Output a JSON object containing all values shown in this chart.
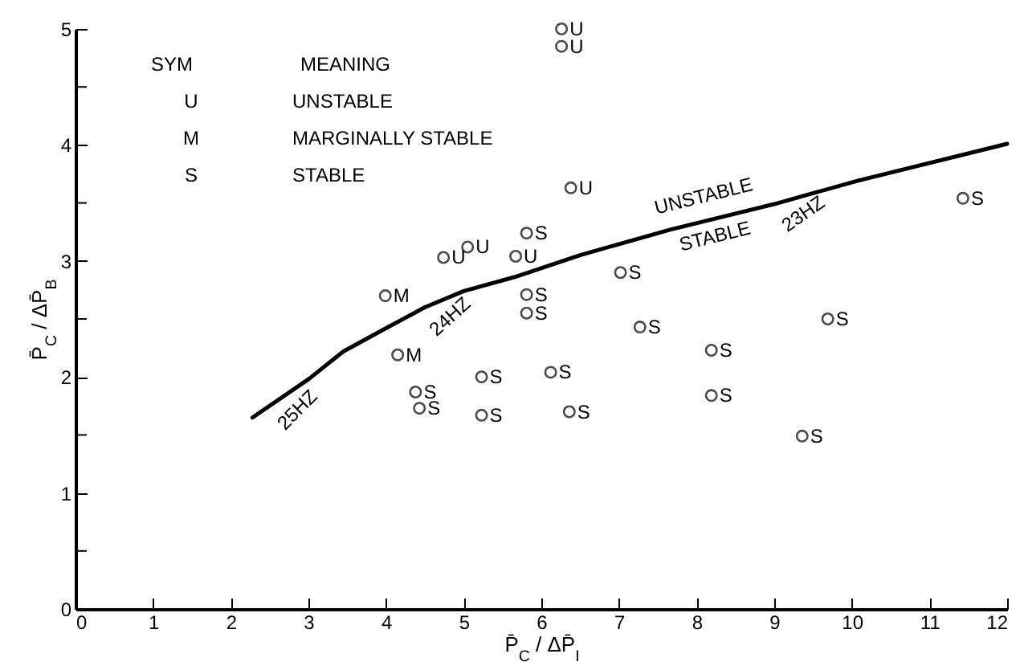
{
  "chart_data": {
    "type": "scatter",
    "xlabel": "P̄$_{C}$ / ΔP̄$_{I}$",
    "ylabel": "P̄$_{C}$ / ΔP̄$_{B}$",
    "xlim": [
      0,
      12
    ],
    "xticks": [
      0,
      1,
      2,
      3,
      4,
      5,
      6,
      7,
      8,
      9,
      10,
      11,
      12
    ],
    "ylim": [
      0,
      5
    ],
    "yticks": [
      0,
      {
        "value": 0.5,
        "label": null
      },
      1,
      {
        "value": 1.5,
        "label": null
      },
      2,
      {
        "value": 2.5,
        "label": null
      },
      3,
      {
        "value": 3.5,
        "label": null
      },
      4,
      {
        "value": 4.5,
        "label": null
      },
      5
    ],
    "grid": false,
    "marker": "circle",
    "legend": "top left",
    "series": [
      {
        "type": "line",
        "marker": "none",
        "color": "#000000",
        "x": [
          2.28,
          3.0,
          3.45,
          4.0,
          4.5,
          5.0,
          5.65,
          6.5,
          7.66,
          9.0,
          10.07,
          12.0
        ],
        "values": [
          1.65,
          1.98,
          2.22,
          2.42,
          2.6,
          2.74,
          2.86,
          3.05,
          3.27,
          3.49,
          3.69,
          4.01
        ]
      },
      {
        "name": "U",
        "color": "#000000",
        "x": [
          6.26,
          6.26,
          6.38,
          5.67,
          4.74,
          5.05
        ],
        "values": [
          5.0,
          4.85,
          3.63,
          3.04,
          3.03,
          3.12
        ]
      },
      {
        "name": "M",
        "color": "#000000",
        "x": [
          3.99,
          4.15
        ],
        "values": [
          2.7,
          2.19
        ]
      },
      {
        "name": "S",
        "color": "#000000",
        "x": [
          5.81,
          5.81,
          5.81,
          7.02,
          7.27,
          11.43,
          9.69,
          4.38,
          4.43,
          5.23,
          5.23,
          6.12,
          6.36,
          8.19,
          8.19,
          9.36
        ],
        "values": [
          3.24,
          2.71,
          2.55,
          2.9,
          2.43,
          3.54,
          2.5,
          1.87,
          1.73,
          2.0,
          1.67,
          2.04,
          1.7,
          2.23,
          1.84,
          1.49
        ]
      }
    ],
    "annotations": [
      "SYM",
      "MEANING",
      "UNSTABLE",
      "MARGINALLY STABLE",
      "STABLE",
      "UNSTABLE",
      "STABLE",
      "25HZ",
      "24HZ",
      "23HZ"
    ]
  }
}
